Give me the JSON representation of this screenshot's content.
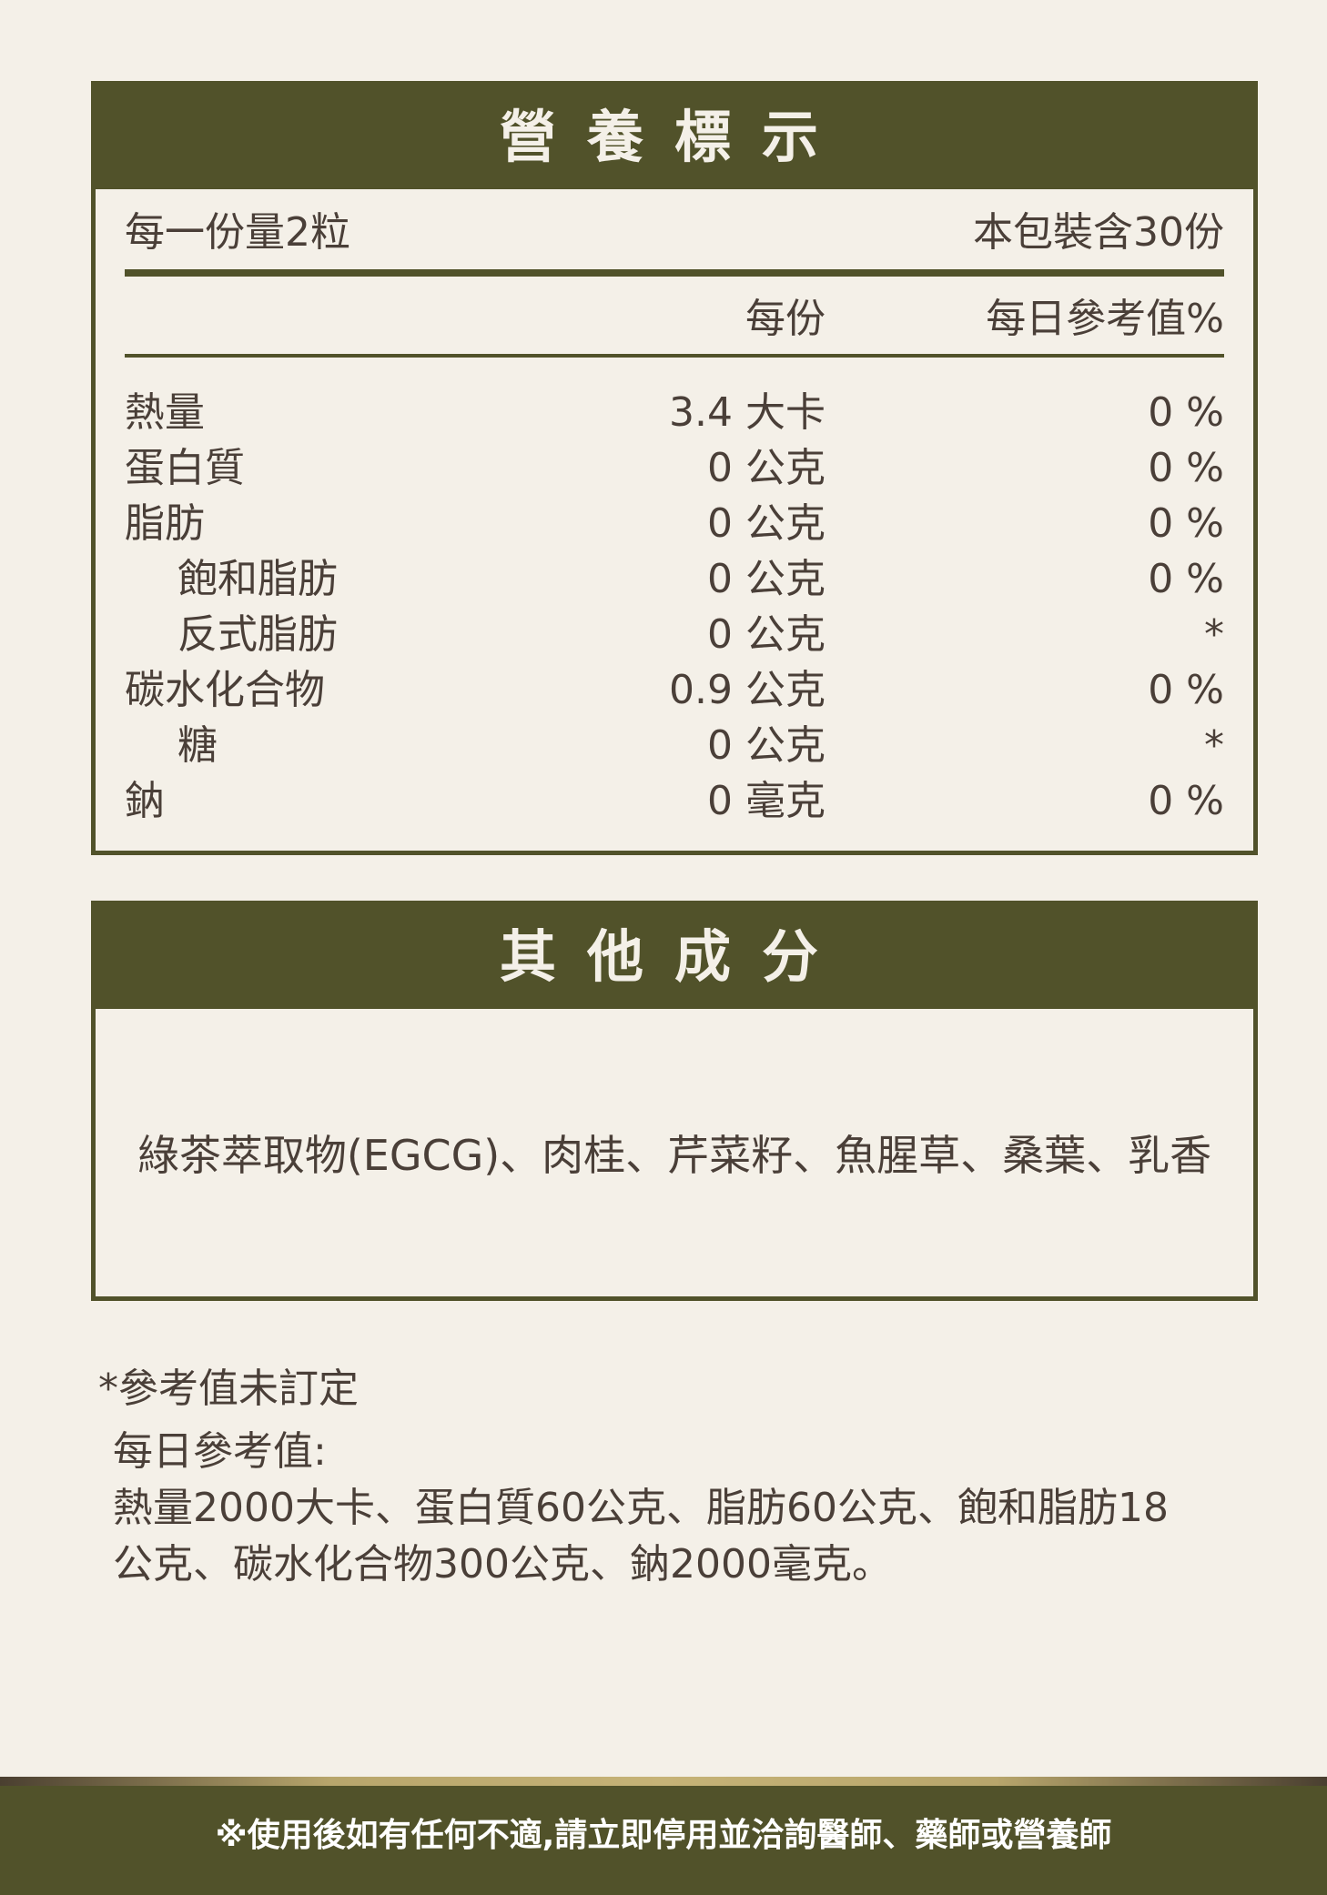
{
  "nutrition": {
    "title": "營養標示",
    "serving_size": "每一份量2粒",
    "servings_per_pack": "本包裝含30份",
    "col_per_serving": "每份",
    "col_daily": "每日參考值%",
    "rows": [
      {
        "name": "熱量",
        "amount": "3.4 大卡",
        "daily": "0 %",
        "indent": false
      },
      {
        "name": "蛋白質",
        "amount": "0 公克",
        "daily": "0 %",
        "indent": false
      },
      {
        "name": "脂肪",
        "amount": "0 公克",
        "daily": "0 %",
        "indent": false
      },
      {
        "name": "飽和脂肪",
        "amount": "0 公克",
        "daily": "0 %",
        "indent": true
      },
      {
        "name": "反式脂肪",
        "amount": "0 公克",
        "daily": "*",
        "indent": true
      },
      {
        "name": "碳水化合物",
        "amount": "0.9 公克",
        "daily": "0 %",
        "indent": false
      },
      {
        "name": "糖",
        "amount": "0 公克",
        "daily": "*",
        "indent": true
      },
      {
        "name": "鈉",
        "amount": "0 毫克",
        "daily": "0 %",
        "indent": false
      }
    ]
  },
  "other": {
    "title": "其他成分",
    "ingredients": "綠茶萃取物(EGCG)、肉桂、芹菜籽、魚腥草、桑葉、乳香"
  },
  "notes": {
    "asterisk": "*參考值未訂定",
    "daily_label": "每日參考值:",
    "line1": "熱量2000大卡、蛋白質60公克、脂肪60公克、飽和脂肪18",
    "line2": "公克、碳水化合物300公克、鈉2000毫克。"
  },
  "footer": {
    "warning": "※使用後如有任何不適,請立即停用並洽詢醫師、藥師或營養師"
  },
  "colors": {
    "brand_green": "#51522a",
    "background": "#f4f0e8",
    "text": "#4a3f38"
  }
}
